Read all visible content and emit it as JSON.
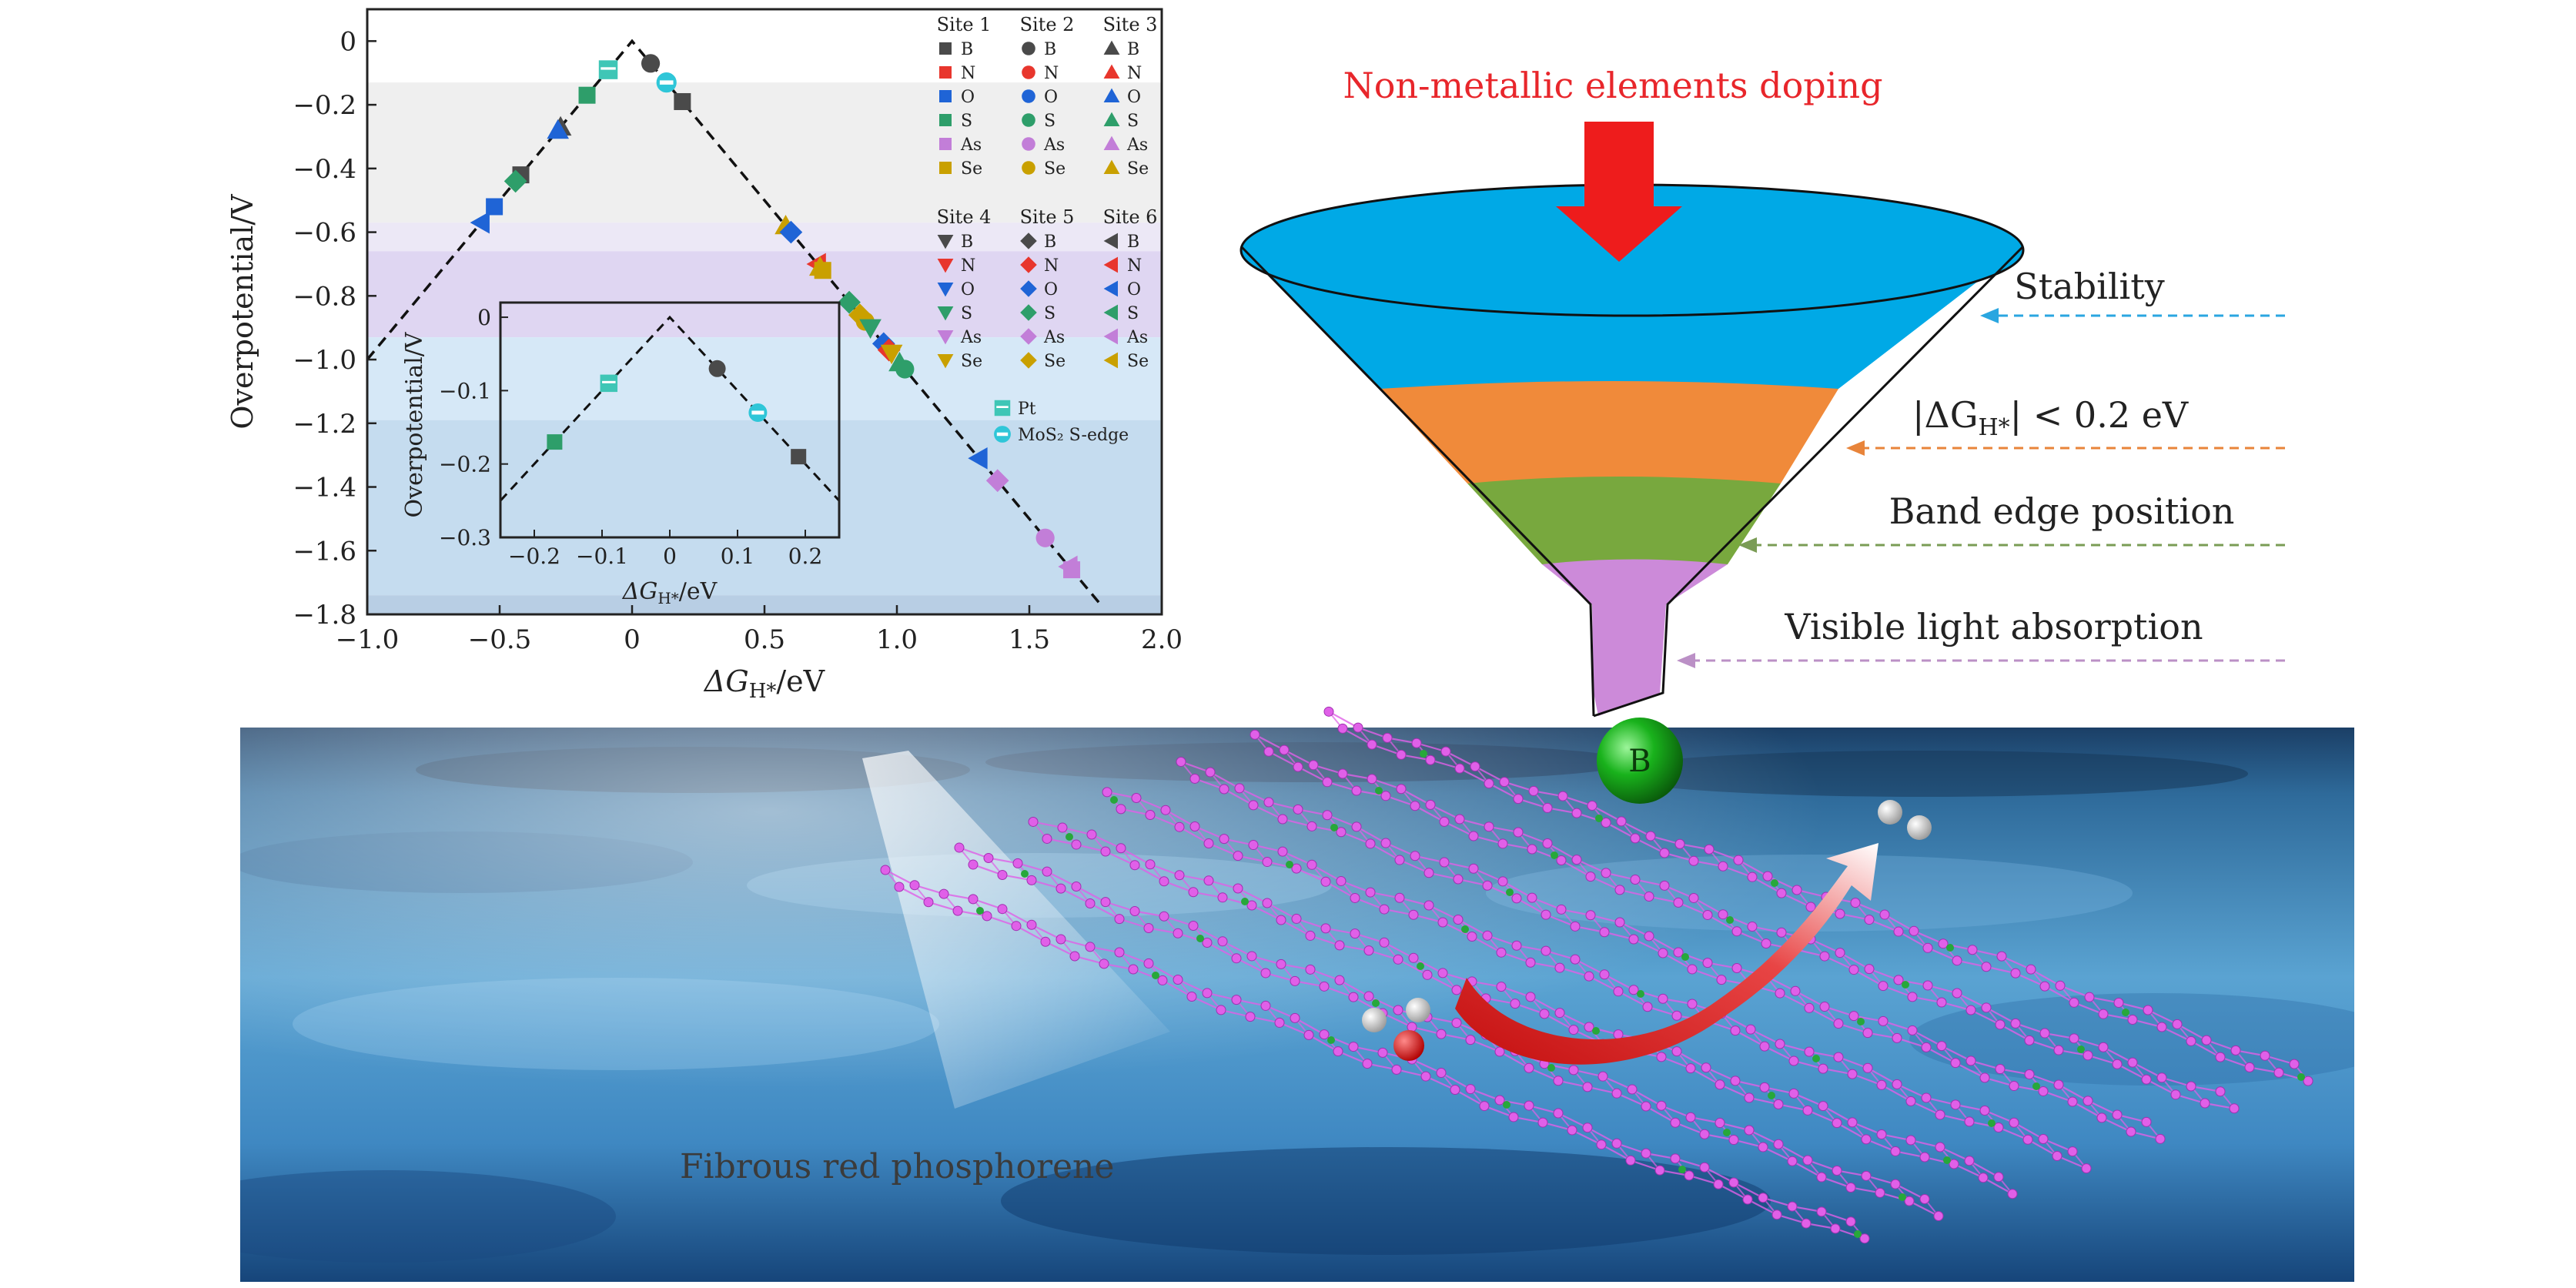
{
  "main_chart": {
    "chart_data": {
      "type": "scatter",
      "xlabel": "ΔG",
      "xlabel_sub": "H*",
      "xlabel_unit": "/eV",
      "ylabel": "Overpotential/V",
      "xlim": [
        -1.0,
        2.0
      ],
      "ylim": [
        -1.8,
        0.1
      ],
      "xticks": [
        "−1.0",
        "−0.5",
        "0",
        "0.5",
        "1.0",
        "1.5",
        "2.0"
      ],
      "xtick_values": [
        -1.0,
        -0.5,
        0,
        0.5,
        1.0,
        1.5,
        2.0
      ],
      "yticks": [
        "0",
        "−0.2",
        "−0.4",
        "−0.6",
        "−0.8",
        "−1.0",
        "−1.2",
        "−1.4",
        "−1.6",
        "−1.8"
      ],
      "ytick_values": [
        0,
        -0.2,
        -0.4,
        -0.6,
        -0.8,
        -1.0,
        -1.2,
        -1.4,
        -1.6,
        -1.8
      ],
      "volcano_line": "overpotential = −|ΔG|",
      "bands": [
        {
          "from": 0.0,
          "to": -0.13,
          "color": "#ffffff"
        },
        {
          "from": -0.13,
          "to": -0.57,
          "color": "#efefef"
        },
        {
          "from": -0.57,
          "to": -0.66,
          "color": "#ece8f6"
        },
        {
          "from": -0.66,
          "to": -0.93,
          "color": "#dfd6f2"
        },
        {
          "from": -0.93,
          "to": -1.19,
          "color": "#d6e8f7"
        },
        {
          "from": -1.19,
          "to": -1.74,
          "color": "#c5dcef"
        },
        {
          "from": -1.74,
          "to": -1.8,
          "color": "#b8cee4"
        }
      ],
      "element_colors": {
        "B": "#4a4a4a",
        "N": "#e8362d",
        "O": "#1f64d6",
        "S": "#2e9e6a",
        "As": "#c27ed8",
        "Se": "#c9a000"
      },
      "legend": {
        "groups": [
          {
            "title": "Site 1",
            "marker": "square"
          },
          {
            "title": "Site 2",
            "marker": "circle"
          },
          {
            "title": "Site 3",
            "marker": "triangle-up"
          },
          {
            "title": "Site 4",
            "marker": "triangle-down"
          },
          {
            "title": "Site 5",
            "marker": "diamond"
          },
          {
            "title": "Site 6",
            "marker": "triangle-left"
          }
        ],
        "elements": [
          "B",
          "N",
          "O",
          "S",
          "As",
          "Se"
        ],
        "references": [
          {
            "label": "Pt",
            "color": "#3fc6b6",
            "marker": "square-half"
          },
          {
            "label": "MoS₂ S-edge",
            "color": "#2fc6d8",
            "marker": "circle-half"
          }
        ]
      },
      "points": [
        {
          "x": 0.07,
          "y": -0.07,
          "el": "B",
          "m": "circle"
        },
        {
          "x": 0.19,
          "y": -0.19,
          "el": "B",
          "m": "square"
        },
        {
          "x": -0.17,
          "y": -0.17,
          "el": "S",
          "m": "square"
        },
        {
          "x": -0.27,
          "y": -0.27,
          "el": "B",
          "m": "triangle-up"
        },
        {
          "x": -0.28,
          "y": -0.28,
          "el": "O",
          "m": "triangle-up"
        },
        {
          "x": -0.42,
          "y": -0.42,
          "el": "B",
          "m": "square"
        },
        {
          "x": -0.44,
          "y": -0.44,
          "el": "S",
          "m": "diamond"
        },
        {
          "x": -0.52,
          "y": -0.52,
          "el": "O",
          "m": "square"
        },
        {
          "x": -0.57,
          "y": -0.57,
          "el": "O",
          "m": "triangle-left"
        },
        {
          "x": 0.58,
          "y": -0.58,
          "el": "Se",
          "m": "triangle-up"
        },
        {
          "x": 0.6,
          "y": -0.6,
          "el": "O",
          "m": "diamond"
        },
        {
          "x": 0.7,
          "y": -0.7,
          "el": "N",
          "m": "triangle-left"
        },
        {
          "x": 0.71,
          "y": -0.71,
          "el": "Se",
          "m": "triangle-up"
        },
        {
          "x": 0.72,
          "y": -0.72,
          "el": "Se",
          "m": "square"
        },
        {
          "x": 0.82,
          "y": -0.82,
          "el": "S",
          "m": "diamond"
        },
        {
          "x": 0.86,
          "y": -0.86,
          "el": "Se",
          "m": "diamond"
        },
        {
          "x": 0.88,
          "y": -0.88,
          "el": "Se",
          "m": "circle"
        },
        {
          "x": 0.9,
          "y": -0.9,
          "el": "S",
          "m": "triangle-down"
        },
        {
          "x": 0.95,
          "y": -0.95,
          "el": "O",
          "m": "diamond"
        },
        {
          "x": 0.97,
          "y": -0.97,
          "el": "N",
          "m": "diamond"
        },
        {
          "x": 0.98,
          "y": -0.98,
          "el": "Se",
          "m": "triangle-down"
        },
        {
          "x": 1.01,
          "y": -1.01,
          "el": "S",
          "m": "triangle-up"
        },
        {
          "x": 1.03,
          "y": -1.03,
          "el": "S",
          "m": "circle"
        },
        {
          "x": 1.31,
          "y": -1.31,
          "el": "O",
          "m": "triangle-left"
        },
        {
          "x": 1.38,
          "y": -1.38,
          "el": "As",
          "m": "diamond"
        },
        {
          "x": 1.56,
          "y": -1.56,
          "el": "As",
          "m": "circle"
        },
        {
          "x": 1.65,
          "y": -1.65,
          "el": "As",
          "m": "triangle-left"
        },
        {
          "x": 1.66,
          "y": -1.66,
          "el": "As",
          "m": "square"
        }
      ],
      "ref_points": [
        {
          "x": -0.09,
          "y": -0.09,
          "ref": "Pt"
        },
        {
          "x": 0.13,
          "y": -0.13,
          "ref": "MoS₂ S-edge"
        }
      ]
    }
  },
  "inset_chart": {
    "chart_data": {
      "type": "scatter",
      "xlabel": "ΔG",
      "xlabel_sub": "H*",
      "xlabel_unit": "/eV",
      "ylabel": "Overpotential/V",
      "xlim": [
        -0.25,
        0.25
      ],
      "ylim": [
        -0.3,
        0.02
      ],
      "xticks": [
        "−0.2",
        "−0.1",
        "0",
        "0.1",
        "0.2"
      ],
      "xtick_values": [
        -0.2,
        -0.1,
        0,
        0.1,
        0.2
      ],
      "yticks": [
        "0",
        "−0.1",
        "−0.2",
        "−0.3"
      ],
      "ytick_values": [
        0,
        -0.1,
        -0.2,
        -0.3
      ],
      "points": [
        {
          "x": -0.17,
          "y": -0.17,
          "el": "S",
          "m": "square"
        },
        {
          "x": -0.09,
          "y": -0.09,
          "ref": "Pt"
        },
        {
          "x": 0.07,
          "y": -0.07,
          "el": "B",
          "m": "circle"
        },
        {
          "x": 0.13,
          "y": -0.13,
          "ref": "MoS₂ S-edge"
        },
        {
          "x": 0.19,
          "y": -0.19,
          "el": "B",
          "m": "square"
        }
      ]
    }
  },
  "funnel": {
    "title": "Non-metallic elements doping",
    "title_color": "#e8262b",
    "layers": [
      {
        "label": "Stability",
        "color": "#00a9e6",
        "arrow_color": "#2aa6e0"
      },
      {
        "label": "|ΔG",
        "label_sub": "H*",
        "label_tail": "| < 0.2 eV",
        "color": "#f08a3a",
        "arrow_color": "#e8843a"
      },
      {
        "label": "Band edge position",
        "color": "#78a83e",
        "arrow_color": "#7a9c55"
      },
      {
        "label": "Visible light absorption",
        "color": "#cc8ad9",
        "arrow_color": "#bb90c6"
      }
    ],
    "dopant_atom": {
      "label": "B",
      "color": "#19b21c"
    }
  },
  "scene": {
    "caption": "Fibrous red phosphorene",
    "phosphorus_color": "#e060e8",
    "arrow_color": "#d91a1a"
  }
}
